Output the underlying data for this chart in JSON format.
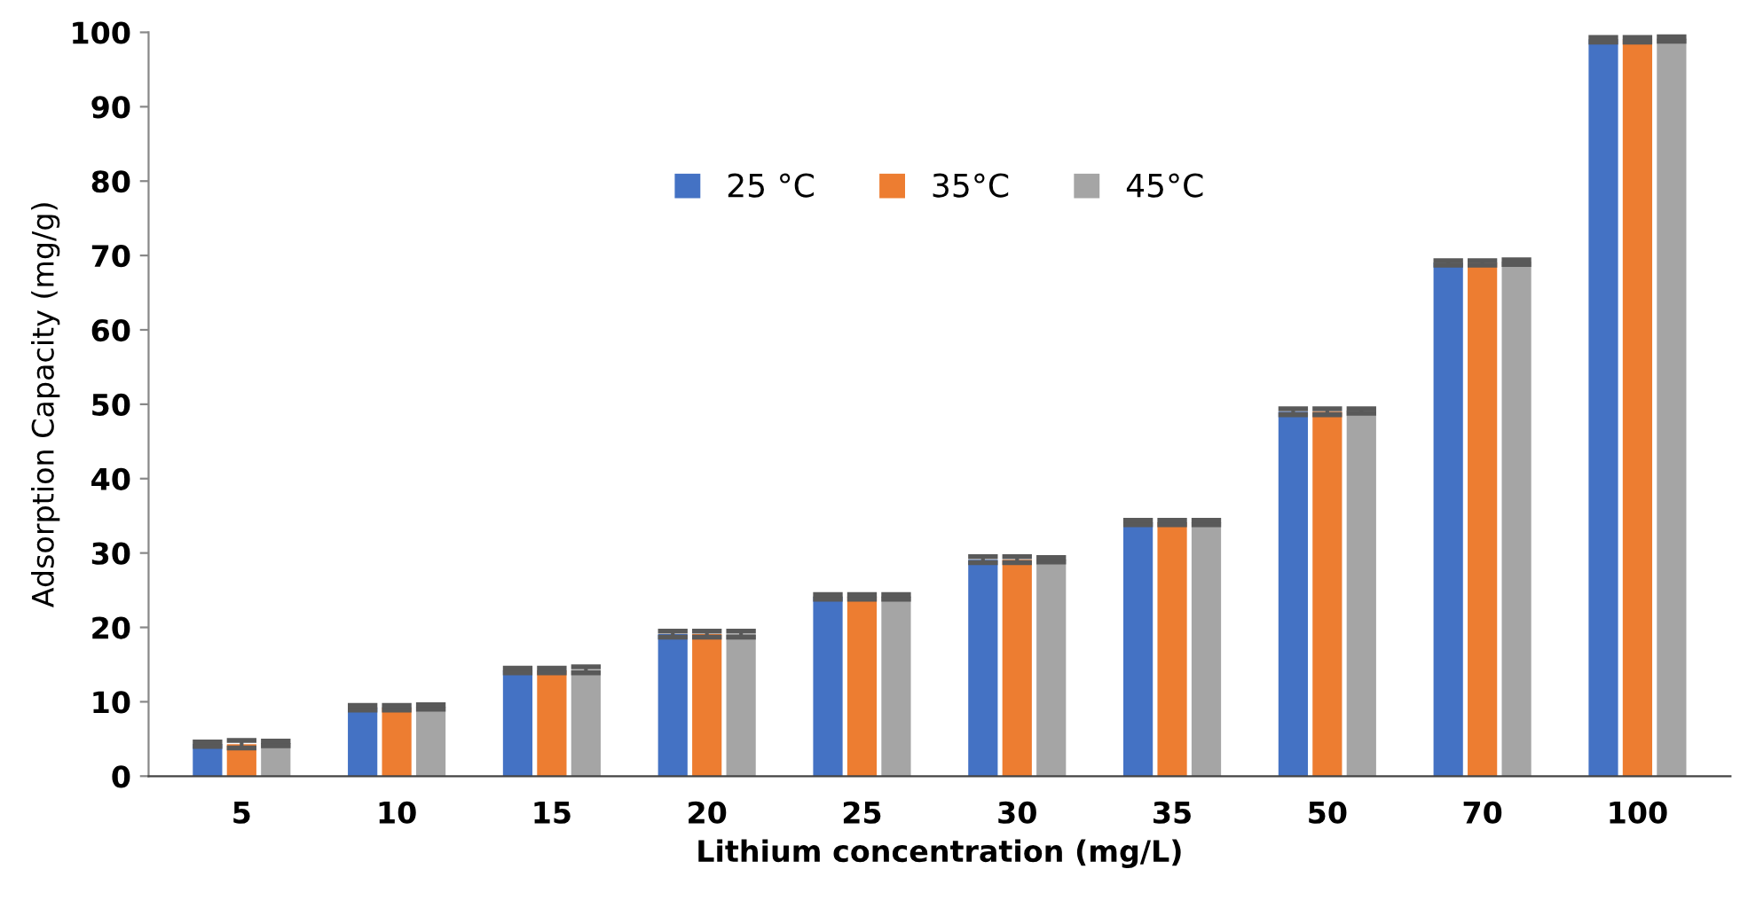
{
  "chart_data": {
    "type": "bar",
    "xlabel": "Lithium concentration (mg/L)",
    "ylabel": "Adsorption Capacity (mg/g)",
    "categories": [
      "5",
      "10",
      "15",
      "20",
      "25",
      "30",
      "35",
      "50",
      "70",
      "100"
    ],
    "series": [
      {
        "name": "25 °C",
        "color": "#4472c4",
        "values": [
          4.3,
          9.2,
          14.2,
          19.1,
          24.1,
          29.1,
          34.1,
          49.0,
          69.0,
          99.0
        ],
        "errors": [
          0.3,
          0.3,
          0.3,
          0.4,
          0.3,
          0.4,
          0.3,
          0.4,
          0.3,
          0.3
        ]
      },
      {
        "name": "35°C",
        "color": "#ed7d31",
        "values": [
          4.3,
          9.2,
          14.2,
          19.1,
          24.1,
          29.1,
          34.1,
          49.0,
          69.0,
          99.0
        ],
        "errors": [
          0.5,
          0.3,
          0.3,
          0.4,
          0.3,
          0.4,
          0.3,
          0.4,
          0.3,
          0.3
        ]
      },
      {
        "name": "45°C",
        "color": "#a5a5a5",
        "values": [
          4.4,
          9.3,
          14.3,
          19.1,
          24.1,
          29.1,
          34.1,
          49.1,
          69.1,
          99.1
        ],
        "errors": [
          0.3,
          0.3,
          0.4,
          0.4,
          0.3,
          0.3,
          0.3,
          0.3,
          0.3,
          0.3
        ]
      }
    ],
    "ylim": [
      0,
      100
    ],
    "yticks": [
      0,
      10,
      20,
      30,
      40,
      50,
      60,
      70,
      80,
      90,
      100
    ],
    "grid": false,
    "legend": "top"
  }
}
